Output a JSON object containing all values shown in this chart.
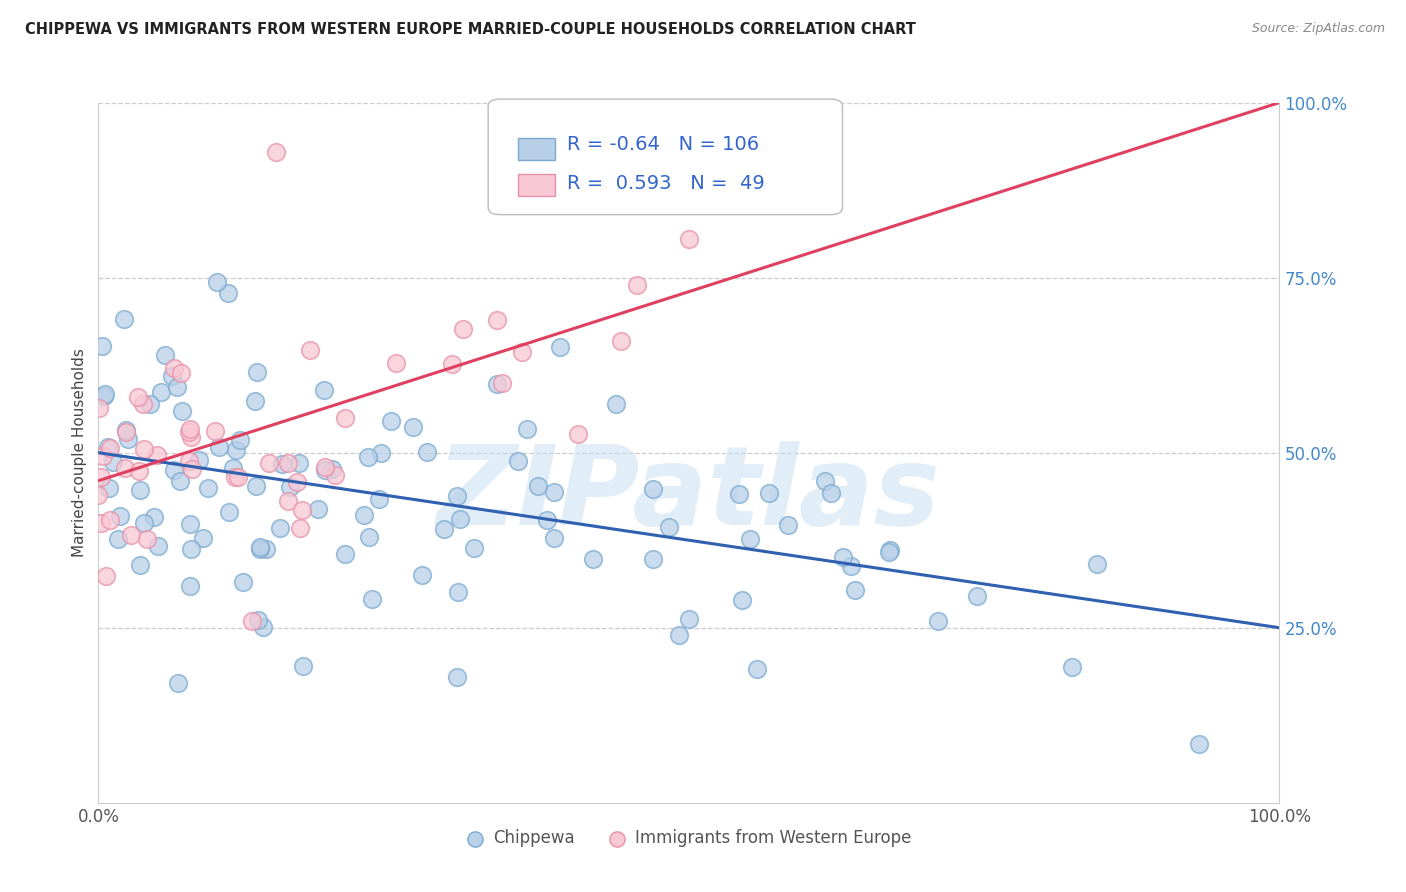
{
  "title": "CHIPPEWA VS IMMIGRANTS FROM WESTERN EUROPE MARRIED-COUPLE HOUSEHOLDS CORRELATION CHART",
  "source": "Source: ZipAtlas.com",
  "ylabel": "Married-couple Households",
  "xlim": [
    0,
    100
  ],
  "ylim": [
    0,
    100
  ],
  "ytick_vals": [
    25,
    50,
    75,
    100
  ],
  "ytick_labels": [
    "25.0%",
    "50.0%",
    "75.0%",
    "100.0%"
  ],
  "xtick_vals": [
    0,
    25,
    50,
    75,
    100
  ],
  "xtick_labels": [
    "0.0%",
    "",
    "",
    "",
    "100.0%"
  ],
  "blue_fill": "#b8d0e8",
  "blue_edge": "#7aaad0",
  "pink_fill": "#f8c8d4",
  "pink_edge": "#e890a8",
  "blue_line_color": "#3060b0",
  "pink_line_color": "#e04060",
  "R_blue": -0.64,
  "N_blue": 106,
  "R_pink": 0.593,
  "N_pink": 49,
  "watermark": "ZIPatlas",
  "legend_label_chippewa": "Chippewa",
  "legend_label_western": "Immigrants from Western Europe",
  "blue_line_x": [
    0,
    100
  ],
  "blue_line_y": [
    50,
    25
  ],
  "pink_line_x": [
    0,
    100
  ],
  "pink_line_y": [
    46,
    100
  ]
}
